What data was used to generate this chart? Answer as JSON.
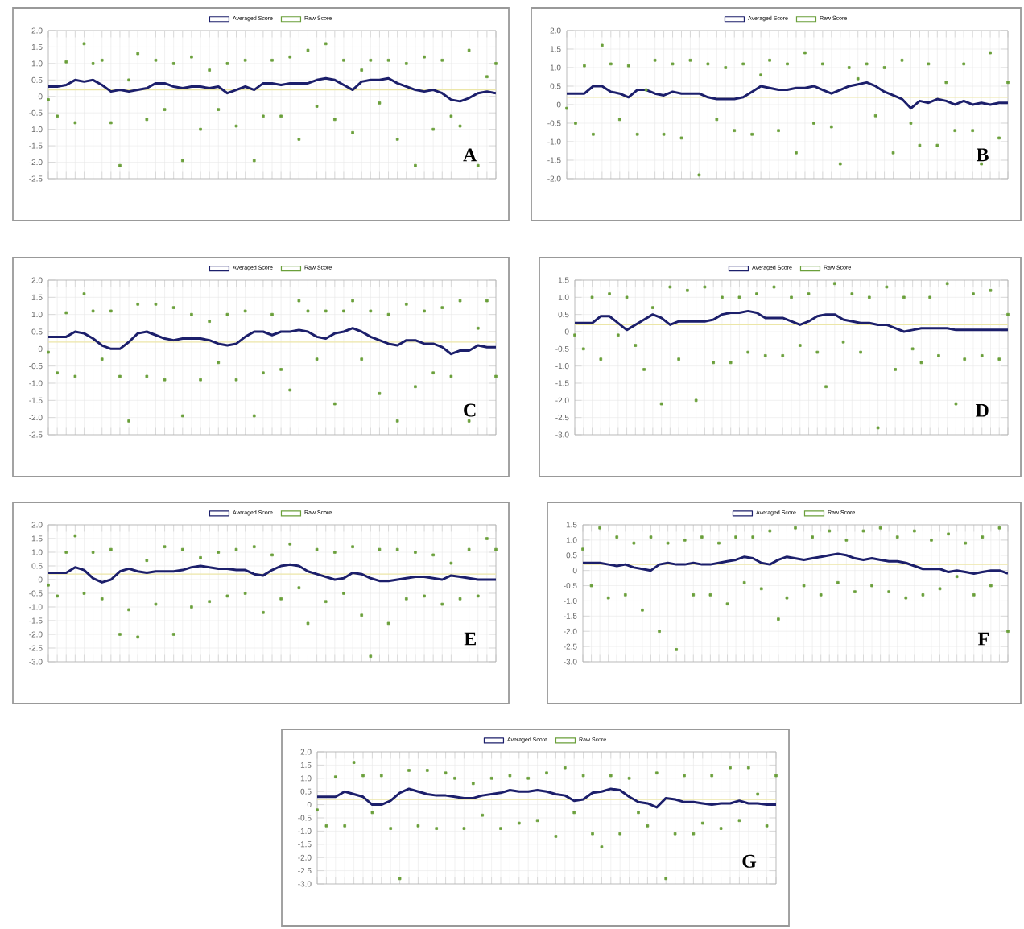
{
  "chart_data": [
    {
      "type": "line",
      "categories": [
        null,
        null,
        null,
        null,
        null,
        null,
        null,
        null,
        null,
        null,
        null,
        null,
        null,
        null,
        null,
        null,
        null,
        null,
        null,
        null,
        null,
        null,
        null,
        null,
        null,
        null,
        null,
        null,
        null,
        null,
        null,
        null,
        null,
        null,
        null,
        null,
        null,
        null,
        null,
        null,
        null,
        null,
        null,
        null,
        null,
        null,
        null,
        null,
        null,
        null,
        null
      ],
      "ylim": [
        -2.5,
        2
      ],
      "yticks": [
        {
          "value": 2,
          "label": "2.0"
        },
        1.5,
        {
          "value": 1,
          "label": "1.0"
        },
        0.5,
        0,
        -0.5,
        {
          "value": -1,
          "label": "-1.0"
        },
        -1.5,
        {
          "value": -2,
          "label": "-2.0"
        },
        -2.5
      ],
      "tick_labels": "y",
      "grid": true,
      "legend": "top",
      "annotations": [
        "A"
      ],
      "ref_lines": [
        {
          "axis": "y",
          "value": 0.2,
          "color": "#ece6a8"
        }
      ],
      "series": [
        {
          "name": "Averaged Score",
          "marker": "none",
          "color": "#1c1f6b",
          "values": [
            0.3,
            0.3,
            0.35,
            0.5,
            0.45,
            0.5,
            0.35,
            0.15,
            0.2,
            0.15,
            0.2,
            0.25,
            0.4,
            0.4,
            0.3,
            0.25,
            0.3,
            0.3,
            0.25,
            0.3,
            0.1,
            0.2,
            0.3,
            0.2,
            0.4,
            0.4,
            0.35,
            0.4,
            0.4,
            0.4,
            0.5,
            0.55,
            0.5,
            0.35,
            0.2,
            0.45,
            0.5,
            0.5,
            0.55,
            0.4,
            0.3,
            0.2,
            0.15,
            0.2,
            0.1,
            -0.1,
            -0.15,
            -0.05,
            0.1,
            0.15,
            0.1
          ]
        },
        {
          "name": "Raw Score",
          "type": "scatter",
          "marker": "square",
          "color": "#6a9f3a",
          "values": [
            -0.1,
            -0.6,
            1.05,
            -0.8,
            1.6,
            1.0,
            1.1,
            -0.8,
            -2.1,
            0.5,
            1.3,
            -0.7,
            1.1,
            -0.4,
            1.0,
            -1.95,
            1.2,
            -1.0,
            0.8,
            -0.4,
            1.0,
            -0.9,
            1.1,
            -1.95,
            -0.6,
            1.1,
            -0.6,
            1.2,
            -1.3,
            1.4,
            -0.3,
            1.6,
            -0.7,
            1.1,
            -1.1,
            0.8,
            1.1,
            -0.2,
            1.1,
            -1.3,
            1.0,
            -2.1,
            1.2,
            -1.0,
            1.1,
            -0.6,
            -0.9,
            1.4,
            -2.1,
            0.6,
            1.0
          ]
        }
      ]
    },
    {
      "type": "line",
      "categories": [
        null,
        null,
        null,
        null,
        null,
        null,
        null,
        null,
        null,
        null,
        null,
        null,
        null,
        null,
        null,
        null,
        null,
        null,
        null,
        null,
        null,
        null,
        null,
        null,
        null,
        null,
        null,
        null,
        null,
        null,
        null,
        null,
        null,
        null,
        null,
        null,
        null,
        null,
        null,
        null,
        null,
        null,
        null,
        null,
        null,
        null,
        null,
        null,
        null,
        null,
        null
      ],
      "ylim": [
        -2,
        2
      ],
      "yticks": [
        {
          "value": 2,
          "label": "2.0"
        },
        1.5,
        {
          "value": 1,
          "label": "1.0"
        },
        0.5,
        0,
        -0.5,
        {
          "value": -1,
          "label": "-1.0"
        },
        -1.5,
        {
          "value": -2,
          "label": "-2.0"
        }
      ],
      "tick_labels": "y",
      "grid": true,
      "legend": "top",
      "annotations": [
        "B"
      ],
      "ref_lines": [
        {
          "axis": "y",
          "value": 0.2,
          "color": "#ece6a8"
        }
      ],
      "series": [
        {
          "name": "Averaged Score",
          "marker": "none",
          "color": "#1c1f6b",
          "values": [
            0.3,
            0.3,
            0.3,
            0.5,
            0.5,
            0.35,
            0.3,
            0.2,
            0.4,
            0.4,
            0.3,
            0.25,
            0.35,
            0.3,
            0.3,
            0.3,
            0.2,
            0.15,
            0.15,
            0.15,
            0.2,
            0.35,
            0.5,
            0.45,
            0.4,
            0.4,
            0.45,
            0.45,
            0.5,
            0.4,
            0.3,
            0.4,
            0.5,
            0.55,
            0.6,
            0.5,
            0.35,
            0.25,
            0.15,
            -0.1,
            0.1,
            0.05,
            0.15,
            0.1,
            0.0,
            0.1,
            0.0,
            0.05,
            0.0,
            0.05,
            0.05
          ]
        },
        {
          "name": "Raw Score",
          "type": "scatter",
          "marker": "square",
          "color": "#6a9f3a",
          "values": [
            -0.1,
            -0.5,
            1.05,
            -0.8,
            1.6,
            1.1,
            -0.4,
            1.05,
            -0.8,
            0.4,
            1.2,
            -0.8,
            1.1,
            -0.9,
            1.2,
            -1.9,
            1.1,
            -0.4,
            1.0,
            -0.7,
            1.1,
            -0.8,
            0.8,
            1.2,
            -0.7,
            1.1,
            -1.3,
            1.4,
            -0.5,
            1.1,
            -0.6,
            -1.6,
            1.0,
            0.7,
            1.1,
            -0.3,
            1.0,
            -1.3,
            1.2,
            -0.5,
            -1.1,
            1.1,
            -1.1,
            0.6,
            -0.7,
            1.1,
            -0.7,
            -1.6,
            1.4,
            -0.9,
            0.6
          ]
        }
      ]
    },
    {
      "type": "line",
      "categories": [
        null,
        null,
        null,
        null,
        null,
        null,
        null,
        null,
        null,
        null,
        null,
        null,
        null,
        null,
        null,
        null,
        null,
        null,
        null,
        null,
        null,
        null,
        null,
        null,
        null,
        null,
        null,
        null,
        null,
        null,
        null,
        null,
        null,
        null,
        null,
        null,
        null,
        null,
        null,
        null,
        null,
        null,
        null,
        null,
        null,
        null,
        null,
        null,
        null,
        null,
        null
      ],
      "ylim": [
        -2.5,
        2
      ],
      "yticks": [
        {
          "value": 2,
          "label": "2.0"
        },
        1.5,
        {
          "value": 1,
          "label": "1.0"
        },
        0.5,
        0,
        -0.5,
        {
          "value": -1,
          "label": "-1.0"
        },
        -1.5,
        {
          "value": -2,
          "label": "-2.0"
        },
        -2.5
      ],
      "tick_labels": "y",
      "grid": true,
      "legend": "top",
      "annotations": [
        "C"
      ],
      "ref_lines": [
        {
          "axis": "y",
          "value": 0.2,
          "color": "#ece6a8"
        }
      ],
      "series": [
        {
          "name": "Averaged Score",
          "marker": "none",
          "color": "#1c1f6b",
          "values": [
            0.35,
            0.35,
            0.35,
            0.5,
            0.45,
            0.3,
            0.1,
            0.0,
            0.0,
            0.2,
            0.45,
            0.5,
            0.4,
            0.3,
            0.25,
            0.3,
            0.3,
            0.3,
            0.25,
            0.15,
            0.1,
            0.15,
            0.35,
            0.5,
            0.5,
            0.4,
            0.5,
            0.5,
            0.55,
            0.5,
            0.35,
            0.3,
            0.45,
            0.5,
            0.6,
            0.5,
            0.35,
            0.25,
            0.15,
            0.1,
            0.25,
            0.25,
            0.15,
            0.15,
            0.05,
            -0.15,
            -0.05,
            -0.05,
            0.1,
            0.05,
            0.05
          ]
        },
        {
          "name": "Raw Score",
          "type": "scatter",
          "marker": "square",
          "color": "#6a9f3a",
          "values": [
            -0.1,
            -0.7,
            1.05,
            -0.8,
            1.6,
            1.1,
            -0.3,
            1.1,
            -0.8,
            -2.1,
            1.3,
            -0.8,
            1.3,
            -0.9,
            1.2,
            -1.95,
            1.0,
            -0.9,
            0.8,
            -0.4,
            1.0,
            -0.9,
            1.1,
            -1.95,
            -0.7,
            1.0,
            -0.6,
            -1.2,
            1.4,
            1.1,
            -0.3,
            1.1,
            -1.6,
            1.1,
            1.4,
            -0.3,
            1.1,
            -1.3,
            1.0,
            -2.1,
            1.3,
            -1.1,
            1.1,
            -0.7,
            1.2,
            -0.8,
            1.4,
            -2.1,
            0.6,
            1.4,
            -0.8
          ]
        }
      ]
    },
    {
      "type": "line",
      "categories": [
        null,
        null,
        null,
        null,
        null,
        null,
        null,
        null,
        null,
        null,
        null,
        null,
        null,
        null,
        null,
        null,
        null,
        null,
        null,
        null,
        null,
        null,
        null,
        null,
        null,
        null,
        null,
        null,
        null,
        null,
        null,
        null,
        null,
        null,
        null,
        null,
        null,
        null,
        null,
        null,
        null,
        null,
        null,
        null,
        null,
        null,
        null,
        null,
        null,
        null,
        null
      ],
      "ylim": [
        -3,
        1.5
      ],
      "yticks": [
        1.5,
        {
          "value": 1,
          "label": "1.0"
        },
        0.5,
        0,
        -0.5,
        {
          "value": -1,
          "label": "-1.0"
        },
        -1.5,
        {
          "value": -2,
          "label": "-2.0"
        },
        -2.5,
        {
          "value": -3,
          "label": "-3.0"
        }
      ],
      "tick_labels": "y",
      "grid": true,
      "legend": "top",
      "annotations": [
        "D"
      ],
      "ref_lines": [
        {
          "axis": "y",
          "value": 0.2,
          "color": "#ece6a8"
        }
      ],
      "series": [
        {
          "name": "Averaged Score",
          "marker": "none",
          "color": "#1c1f6b",
          "values": [
            0.25,
            0.25,
            0.25,
            0.45,
            0.45,
            0.25,
            0.05,
            0.2,
            0.35,
            0.5,
            0.4,
            0.2,
            0.3,
            0.3,
            0.3,
            0.3,
            0.35,
            0.5,
            0.55,
            0.55,
            0.6,
            0.55,
            0.4,
            0.4,
            0.4,
            0.3,
            0.2,
            0.3,
            0.45,
            0.5,
            0.5,
            0.35,
            0.3,
            0.25,
            0.25,
            0.2,
            0.2,
            0.1,
            0.0,
            0.05,
            0.1,
            0.1,
            0.1,
            0.1,
            0.05,
            0.05,
            0.05,
            0.05,
            0.05,
            0.05,
            0.05
          ]
        },
        {
          "name": "Raw Score",
          "type": "scatter",
          "marker": "square",
          "color": "#6a9f3a",
          "values": [
            -0.1,
            -0.5,
            1.0,
            -0.8,
            1.1,
            -0.1,
            1.0,
            -0.4,
            -1.1,
            0.7,
            -2.1,
            1.3,
            -0.8,
            1.2,
            -2.0,
            1.3,
            -0.9,
            1.0,
            -0.9,
            1.0,
            -0.6,
            1.1,
            -0.7,
            1.3,
            -0.7,
            1.0,
            -0.4,
            1.1,
            -0.6,
            -1.6,
            1.4,
            -0.3,
            1.1,
            -0.6,
            1.0,
            -2.8,
            1.3,
            -1.1,
            1.0,
            -0.5,
            -0.9,
            1.0,
            -0.7,
            1.4,
            -2.1,
            -0.8,
            1.1,
            -0.7,
            1.2,
            -0.8,
            0.5
          ]
        }
      ]
    },
    {
      "type": "line",
      "categories": [
        null,
        null,
        null,
        null,
        null,
        null,
        null,
        null,
        null,
        null,
        null,
        null,
        null,
        null,
        null,
        null,
        null,
        null,
        null,
        null,
        null,
        null,
        null,
        null,
        null,
        null,
        null,
        null,
        null,
        null,
        null,
        null,
        null,
        null,
        null,
        null,
        null,
        null,
        null,
        null,
        null,
        null,
        null,
        null,
        null,
        null,
        null,
        null,
        null,
        null,
        null
      ],
      "ylim": [
        -3,
        2
      ],
      "yticks": [
        {
          "value": 2,
          "label": "2.0"
        },
        1.5,
        {
          "value": 1,
          "label": "1.0"
        },
        0.5,
        0,
        -0.5,
        {
          "value": -1,
          "label": "-1.0"
        },
        -1.5,
        {
          "value": -2,
          "label": "-2.0"
        },
        -2.5,
        {
          "value": -3,
          "label": "-3.0"
        }
      ],
      "tick_labels": "y",
      "grid": true,
      "legend": "top",
      "annotations": [
        "E"
      ],
      "ref_lines": [
        {
          "axis": "y",
          "value": 0.2,
          "color": "#ece6a8"
        }
      ],
      "series": [
        {
          "name": "Averaged Score",
          "marker": "none",
          "color": "#1c1f6b",
          "values": [
            0.25,
            0.25,
            0.25,
            0.45,
            0.35,
            0.05,
            -0.1,
            0.0,
            0.3,
            0.4,
            0.3,
            0.25,
            0.3,
            0.3,
            0.3,
            0.35,
            0.45,
            0.5,
            0.45,
            0.4,
            0.4,
            0.35,
            0.35,
            0.2,
            0.15,
            0.35,
            0.5,
            0.55,
            0.5,
            0.3,
            0.2,
            0.1,
            0.0,
            0.05,
            0.25,
            0.2,
            0.05,
            -0.05,
            -0.05,
            0.0,
            0.05,
            0.1,
            0.1,
            0.05,
            0.0,
            0.15,
            0.1,
            0.05,
            0.0,
            0.0,
            0.0
          ]
        },
        {
          "name": "Raw Score",
          "type": "scatter",
          "marker": "square",
          "color": "#6a9f3a",
          "values": [
            -0.2,
            -0.6,
            1.0,
            1.6,
            -0.5,
            1.0,
            -0.7,
            1.1,
            -2.0,
            -1.1,
            -2.1,
            0.7,
            -0.9,
            1.2,
            -2.0,
            1.1,
            -1.0,
            0.8,
            -0.8,
            1.0,
            -0.6,
            1.1,
            -0.5,
            1.2,
            -1.2,
            0.9,
            -0.7,
            1.3,
            -0.3,
            -1.6,
            1.1,
            -0.8,
            1.0,
            -0.5,
            1.2,
            -1.3,
            -2.8,
            1.1,
            -1.6,
            1.1,
            -0.7,
            1.0,
            -0.6,
            0.9,
            -0.9,
            0.6,
            -0.7,
            1.1,
            -0.6,
            1.5,
            1.1
          ]
        }
      ]
    },
    {
      "type": "line",
      "categories": [
        null,
        null,
        null,
        null,
        null,
        null,
        null,
        null,
        null,
        null,
        null,
        null,
        null,
        null,
        null,
        null,
        null,
        null,
        null,
        null,
        null,
        null,
        null,
        null,
        null,
        null,
        null,
        null,
        null,
        null,
        null,
        null,
        null,
        null,
        null,
        null,
        null,
        null,
        null,
        null,
        null,
        null,
        null,
        null,
        null,
        null,
        null,
        null,
        null,
        null,
        null
      ],
      "ylim": [
        -3,
        1.5
      ],
      "yticks": [
        1.5,
        {
          "value": 1,
          "label": "1.0"
        },
        0.5,
        0,
        -0.5,
        {
          "value": -1,
          "label": "-1.0"
        },
        -1.5,
        {
          "value": -2,
          "label": "-2.0"
        },
        -2.5,
        {
          "value": -3,
          "label": "-3.0"
        }
      ],
      "tick_labels": "y",
      "grid": true,
      "legend": "top",
      "annotations": [
        "F"
      ],
      "ref_lines": [
        {
          "axis": "y",
          "value": 0.2,
          "color": "#ece6a8"
        }
      ],
      "series": [
        {
          "name": "Averaged Score",
          "marker": "none",
          "color": "#1c1f6b",
          "values": [
            0.25,
            0.25,
            0.25,
            0.2,
            0.15,
            0.2,
            0.1,
            0.05,
            0.0,
            0.2,
            0.25,
            0.2,
            0.2,
            0.25,
            0.2,
            0.2,
            0.25,
            0.3,
            0.35,
            0.45,
            0.4,
            0.25,
            0.2,
            0.35,
            0.45,
            0.4,
            0.35,
            0.4,
            0.45,
            0.5,
            0.55,
            0.5,
            0.4,
            0.35,
            0.4,
            0.35,
            0.3,
            0.3,
            0.25,
            0.15,
            0.05,
            0.05,
            0.05,
            -0.05,
            0.0,
            -0.05,
            -0.1,
            -0.05,
            0.0,
            0.0,
            -0.1
          ]
        },
        {
          "name": "Raw Score",
          "type": "scatter",
          "marker": "square",
          "color": "#6a9f3a",
          "values": [
            0.7,
            -0.5,
            1.4,
            -0.9,
            1.1,
            -0.8,
            0.9,
            -1.3,
            1.1,
            -2.0,
            0.9,
            -2.6,
            1.0,
            -0.8,
            1.1,
            -0.8,
            0.9,
            -1.1,
            1.1,
            -0.4,
            1.1,
            -0.6,
            1.3,
            -1.6,
            -0.9,
            1.4,
            -0.5,
            1.1,
            -0.8,
            1.3,
            -0.4,
            1.0,
            -0.7,
            1.3,
            -0.5,
            1.4,
            -0.7,
            1.1,
            -0.9,
            1.3,
            -0.8,
            1.0,
            -0.6,
            1.2,
            -0.2,
            0.9,
            -0.8,
            1.1,
            -0.5,
            1.4,
            -2.0
          ]
        }
      ]
    },
    {
      "type": "line",
      "categories": [
        null,
        null,
        null,
        null,
        null,
        null,
        null,
        null,
        null,
        null,
        null,
        null,
        null,
        null,
        null,
        null,
        null,
        null,
        null,
        null,
        null,
        null,
        null,
        null,
        null,
        null,
        null,
        null,
        null,
        null,
        null,
        null,
        null,
        null,
        null,
        null,
        null,
        null,
        null,
        null,
        null,
        null,
        null,
        null,
        null,
        null,
        null,
        null,
        null,
        null,
        null
      ],
      "ylim": [
        -3,
        2
      ],
      "yticks": [
        {
          "value": 2,
          "label": "2.0"
        },
        1.5,
        {
          "value": 1,
          "label": "1.0"
        },
        0.5,
        0,
        -0.5,
        {
          "value": -1,
          "label": "-1.0"
        },
        -1.5,
        {
          "value": -2,
          "label": "-2.0"
        },
        -2.5,
        {
          "value": -3,
          "label": "-3.0"
        }
      ],
      "tick_labels": "y",
      "grid": true,
      "legend": "top",
      "annotations": [
        "G"
      ],
      "ref_lines": [
        {
          "axis": "y",
          "value": 0.2,
          "color": "#ece6a8"
        }
      ],
      "series": [
        {
          "name": "Averaged Score",
          "marker": "none",
          "color": "#1c1f6b",
          "values": [
            0.3,
            0.3,
            0.3,
            0.5,
            0.4,
            0.3,
            0.0,
            0.0,
            0.15,
            0.45,
            0.6,
            0.5,
            0.4,
            0.35,
            0.35,
            0.3,
            0.25,
            0.25,
            0.35,
            0.4,
            0.45,
            0.55,
            0.5,
            0.5,
            0.55,
            0.5,
            0.4,
            0.35,
            0.15,
            0.2,
            0.45,
            0.5,
            0.6,
            0.55,
            0.3,
            0.1,
            0.05,
            -0.1,
            0.25,
            0.2,
            0.1,
            0.1,
            0.05,
            0.0,
            0.05,
            0.05,
            0.15,
            0.05,
            0.05,
            0.0,
            0.0
          ]
        },
        {
          "name": "Raw Score",
          "type": "scatter",
          "marker": "square",
          "color": "#6a9f3a",
          "values": [
            -0.2,
            -0.8,
            1.05,
            -0.8,
            1.6,
            1.1,
            -0.3,
            1.1,
            -0.9,
            -2.8,
            1.3,
            -0.8,
            1.3,
            -0.9,
            1.2,
            1.0,
            -0.9,
            0.8,
            -0.4,
            1.0,
            -0.9,
            1.1,
            -0.7,
            1.0,
            -0.6,
            1.2,
            -1.2,
            1.4,
            -0.3,
            1.1,
            -1.1,
            -1.6,
            1.1,
            -1.1,
            1.0,
            -0.3,
            -0.8,
            1.2,
            -2.8,
            -1.1,
            1.1,
            -1.1,
            -0.7,
            1.1,
            -0.9,
            1.4,
            -0.6,
            1.4,
            0.4,
            -0.8,
            1.1
          ]
        }
      ]
    }
  ]
}
